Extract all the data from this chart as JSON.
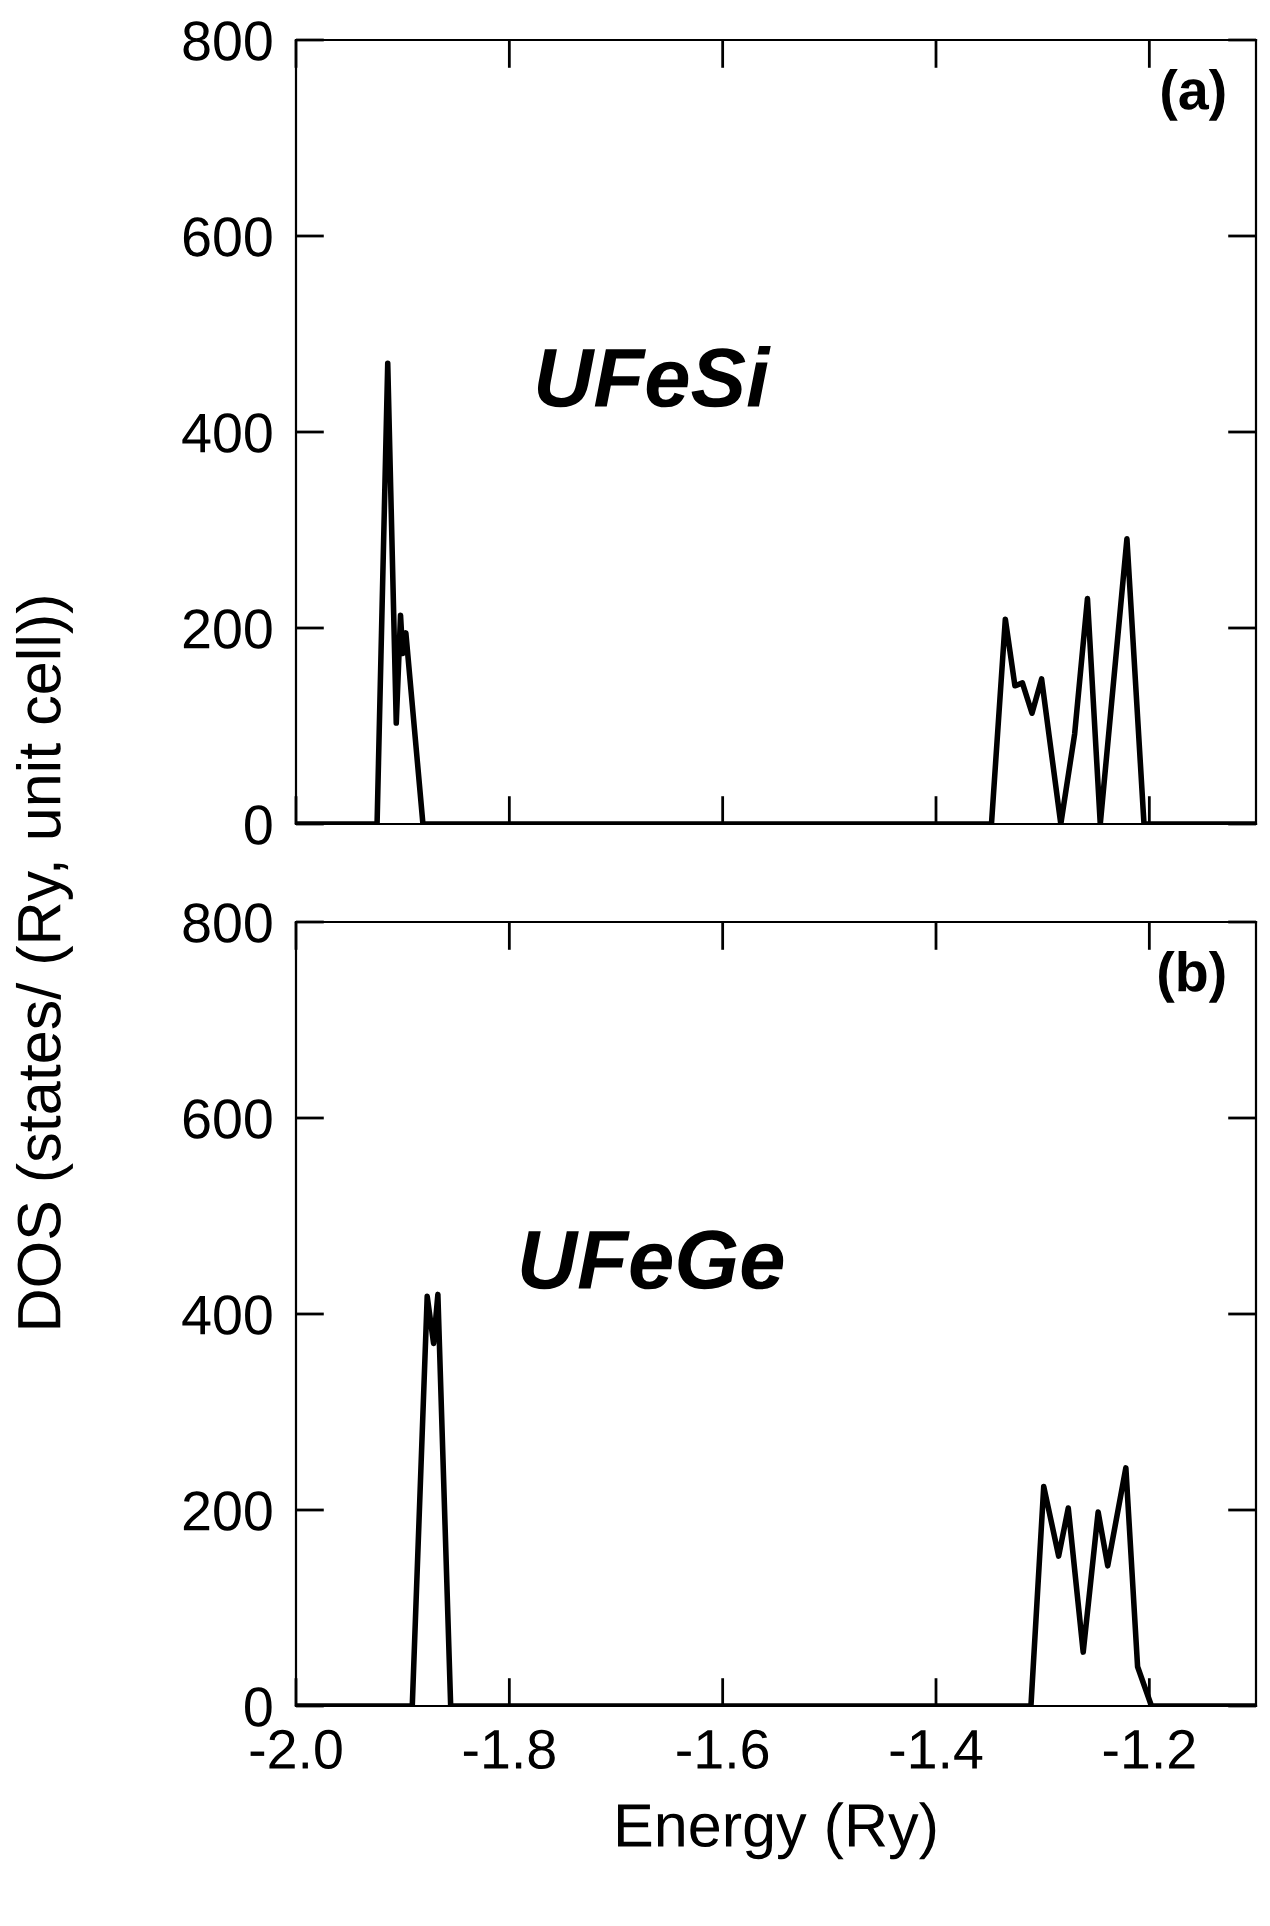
{
  "chart_data": [
    {
      "type": "line",
      "xlim": [
        -2.0,
        -1.1
      ],
      "xticks": [
        -2.0,
        -1.8,
        -1.6,
        -1.4,
        -1.2
      ],
      "ylim": [
        0,
        800
      ],
      "yticks": [
        0,
        200,
        400,
        600,
        800
      ],
      "ylabel": "DOS (states/ (Ry, unit cell))",
      "tick_labels": "y",
      "grid": false,
      "legend": false,
      "annotations": [
        "(a)",
        "UFeSi"
      ],
      "series": [
        {
          "color": "#000000",
          "x": [
            -2.0,
            -1.924,
            -1.914,
            -1.906,
            -1.902,
            -1.9,
            -1.897,
            -1.881,
            -1.348,
            -1.335,
            -1.326,
            -1.319,
            -1.31,
            -1.301,
            -1.283,
            -1.27,
            -1.258,
            -1.246,
            -1.221,
            -1.205,
            -1.1
          ],
          "values": [
            0,
            0,
            470,
            103,
            213,
            174,
            195,
            0,
            0,
            209,
            141,
            144,
            113,
            148,
            0,
            92,
            230,
            0,
            291,
            0,
            0
          ]
        }
      ]
    },
    {
      "type": "line",
      "xlim": [
        -2.0,
        -1.1
      ],
      "xticks": [
        {
          "value": -2.0,
          "label": "-2.0"
        },
        -1.8,
        -1.6,
        -1.4,
        -1.2
      ],
      "ylim": [
        0,
        800
      ],
      "yticks": [
        0,
        200,
        400,
        600,
        800
      ],
      "xlabel": "Energy (Ry)",
      "grid": false,
      "legend": false,
      "annotations": [
        "(b)",
        "UFeGe"
      ],
      "series": [
        {
          "color": "#000000",
          "x": [
            -2.0,
            -1.891,
            -1.877,
            -1.871,
            -1.867,
            -1.855,
            -1.311,
            -1.299,
            -1.285,
            -1.276,
            -1.262,
            -1.248,
            -1.239,
            -1.222,
            -1.211,
            -1.198,
            -1.1
          ],
          "values": [
            0,
            0,
            418,
            370,
            420,
            0,
            0,
            224,
            153,
            202,
            55,
            198,
            143,
            243,
            40,
            0,
            0
          ]
        }
      ]
    }
  ]
}
